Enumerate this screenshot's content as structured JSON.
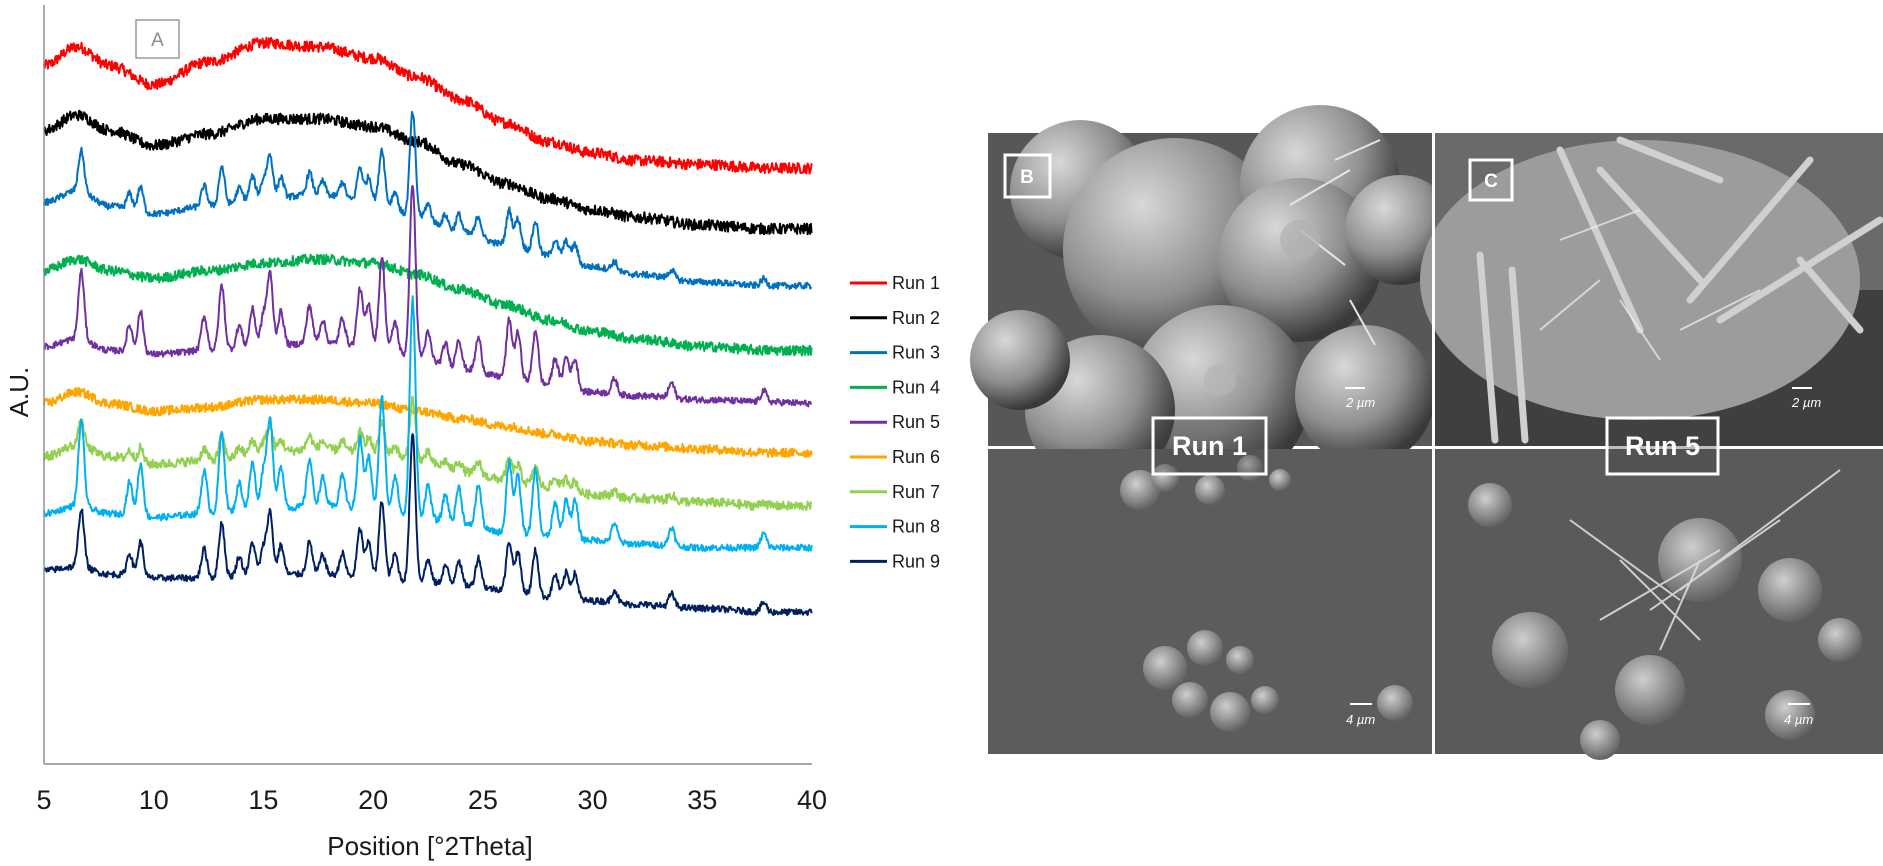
{
  "panels": {
    "a": "A",
    "b": "B",
    "c": "C"
  },
  "sem": {
    "b_top_scale": "2 µm",
    "c_top_scale": "2 µm",
    "b_bottom_scale": "4 µm",
    "c_bottom_scale": "4 µm",
    "run_label_left": "Run 1",
    "run_label_right": "Run 5"
  },
  "chart_data": {
    "type": "line",
    "title": "",
    "xlabel": "Position [°2Theta]",
    "ylabel": "A.U.",
    "xlim": [
      5,
      40
    ],
    "x_ticks": [
      5,
      10,
      15,
      20,
      25,
      30,
      35,
      40
    ],
    "grid": false,
    "legend_position": "right",
    "series": [
      {
        "name": "Run 1",
        "color": "#ff0000",
        "kind": "amorphous",
        "baseline": 0.93,
        "amp": 1.0,
        "noise": 1.2,
        "points": [
          [
            5,
            0.92
          ],
          [
            6.5,
            0.945
          ],
          [
            8,
            0.92
          ],
          [
            10,
            0.895
          ],
          [
            12.5,
            0.925
          ],
          [
            15,
            0.95
          ],
          [
            17.5,
            0.945
          ],
          [
            20,
            0.93
          ],
          [
            22,
            0.905
          ],
          [
            24,
            0.875
          ],
          [
            26,
            0.845
          ],
          [
            28,
            0.82
          ],
          [
            30,
            0.805
          ],
          [
            32,
            0.795
          ],
          [
            35,
            0.79
          ],
          [
            38,
            0.785
          ],
          [
            40,
            0.785
          ]
        ],
        "peaks": []
      },
      {
        "name": "Run 2",
        "color": "#000000",
        "kind": "amorphous",
        "baseline": 0.84,
        "amp": 1.0,
        "noise": 1.2,
        "points": [
          [
            5,
            0.835
          ],
          [
            6.5,
            0.855
          ],
          [
            8,
            0.835
          ],
          [
            10,
            0.815
          ],
          [
            12.5,
            0.83
          ],
          [
            15,
            0.85
          ],
          [
            17.5,
            0.85
          ],
          [
            20,
            0.84
          ],
          [
            22,
            0.82
          ],
          [
            24,
            0.79
          ],
          [
            26,
            0.765
          ],
          [
            28,
            0.745
          ],
          [
            30,
            0.73
          ],
          [
            32,
            0.72
          ],
          [
            35,
            0.71
          ],
          [
            38,
            0.705
          ],
          [
            40,
            0.705
          ]
        ],
        "peaks": []
      },
      {
        "name": "Run 3",
        "color": "#0070c0",
        "kind": "crystalline",
        "baseline": 0.0,
        "amp": 0.6,
        "noise": 0.7,
        "points": [
          [
            5,
            0.74
          ],
          [
            6.5,
            0.755
          ],
          [
            8,
            0.735
          ],
          [
            10,
            0.725
          ],
          [
            12.5,
            0.735
          ],
          [
            15,
            0.745
          ],
          [
            17.5,
            0.75
          ],
          [
            20,
            0.74
          ],
          [
            22,
            0.72
          ],
          [
            24,
            0.7
          ],
          [
            26,
            0.685
          ],
          [
            28,
            0.67
          ],
          [
            30,
            0.655
          ],
          [
            32,
            0.645
          ],
          [
            35,
            0.635
          ],
          [
            38,
            0.63
          ],
          [
            40,
            0.63
          ]
        ],
        "peaks": []
      },
      {
        "name": "Run 4",
        "color": "#00b050",
        "kind": "amorphous",
        "baseline": 0.0,
        "amp": 1.0,
        "noise": 1.1,
        "points": [
          [
            5,
            0.65
          ],
          [
            6.5,
            0.665
          ],
          [
            8,
            0.65
          ],
          [
            10,
            0.64
          ],
          [
            12.5,
            0.65
          ],
          [
            15,
            0.66
          ],
          [
            17.5,
            0.665
          ],
          [
            20,
            0.66
          ],
          [
            22,
            0.645
          ],
          [
            24,
            0.625
          ],
          [
            26,
            0.605
          ],
          [
            28,
            0.585
          ],
          [
            30,
            0.57
          ],
          [
            32,
            0.56
          ],
          [
            35,
            0.55
          ],
          [
            38,
            0.545
          ],
          [
            40,
            0.545
          ]
        ],
        "peaks": []
      },
      {
        "name": "Run 5",
        "color": "#7030a0",
        "kind": "crystalline",
        "baseline": 0.0,
        "amp": 1.0,
        "noise": 0.7,
        "points": [
          [
            5,
            0.55
          ],
          [
            6.5,
            0.56
          ],
          [
            8,
            0.545
          ],
          [
            10,
            0.54
          ],
          [
            12.5,
            0.545
          ],
          [
            15,
            0.55
          ],
          [
            17.5,
            0.555
          ],
          [
            20,
            0.55
          ],
          [
            22,
            0.535
          ],
          [
            24,
            0.52
          ],
          [
            26,
            0.51
          ],
          [
            28,
            0.5
          ],
          [
            30,
            0.49
          ],
          [
            32,
            0.485
          ],
          [
            35,
            0.48
          ],
          [
            38,
            0.477
          ],
          [
            40,
            0.475
          ]
        ],
        "peaks": []
      },
      {
        "name": "Run 6",
        "color": "#ffa500",
        "kind": "amorphous",
        "baseline": 0.0,
        "amp": 1.0,
        "noise": 1.0,
        "points": [
          [
            5,
            0.475
          ],
          [
            6.5,
            0.49
          ],
          [
            8,
            0.475
          ],
          [
            10,
            0.465
          ],
          [
            12.5,
            0.47
          ],
          [
            15,
            0.48
          ],
          [
            17.5,
            0.48
          ],
          [
            20,
            0.475
          ],
          [
            22,
            0.465
          ],
          [
            24,
            0.455
          ],
          [
            26,
            0.445
          ],
          [
            28,
            0.435
          ],
          [
            30,
            0.425
          ],
          [
            32,
            0.42
          ],
          [
            35,
            0.415
          ],
          [
            38,
            0.41
          ],
          [
            40,
            0.41
          ]
        ],
        "peaks": []
      },
      {
        "name": "Run 7",
        "color": "#92d050",
        "kind": "semi",
        "baseline": 0.0,
        "amp": 0.35,
        "noise": 1.0,
        "points": [
          [
            5,
            0.405
          ],
          [
            6.5,
            0.42
          ],
          [
            8,
            0.405
          ],
          [
            10,
            0.395
          ],
          [
            12.5,
            0.4
          ],
          [
            15,
            0.41
          ],
          [
            17.5,
            0.415
          ],
          [
            20,
            0.41
          ],
          [
            22,
            0.4
          ],
          [
            24,
            0.385
          ],
          [
            26,
            0.375
          ],
          [
            28,
            0.365
          ],
          [
            30,
            0.355
          ],
          [
            32,
            0.35
          ],
          [
            35,
            0.345
          ],
          [
            38,
            0.34
          ],
          [
            40,
            0.34
          ]
        ],
        "peaks": []
      },
      {
        "name": "Run 8",
        "color": "#00b0f0",
        "kind": "crystalline",
        "baseline": 0.0,
        "amp": 1.25,
        "noise": 0.7,
        "points": [
          [
            5,
            0.33
          ],
          [
            6.5,
            0.34
          ],
          [
            8,
            0.33
          ],
          [
            10,
            0.325
          ],
          [
            12.5,
            0.33
          ],
          [
            15,
            0.335
          ],
          [
            17.5,
            0.34
          ],
          [
            20,
            0.335
          ],
          [
            22,
            0.325
          ],
          [
            24,
            0.315
          ],
          [
            26,
            0.305
          ],
          [
            28,
            0.3
          ],
          [
            30,
            0.295
          ],
          [
            32,
            0.29
          ],
          [
            35,
            0.285
          ],
          [
            38,
            0.285
          ],
          [
            40,
            0.285
          ]
        ],
        "peaks": []
      },
      {
        "name": "Run 9",
        "color": "#002060",
        "kind": "crystalline",
        "baseline": 0.0,
        "amp": 0.85,
        "noise": 0.7,
        "points": [
          [
            5,
            0.255
          ],
          [
            6.5,
            0.26
          ],
          [
            8,
            0.25
          ],
          [
            10,
            0.245
          ],
          [
            12.5,
            0.245
          ],
          [
            15,
            0.25
          ],
          [
            17.5,
            0.25
          ],
          [
            20,
            0.245
          ],
          [
            22,
            0.24
          ],
          [
            24,
            0.235
          ],
          [
            26,
            0.23
          ],
          [
            28,
            0.22
          ],
          [
            30,
            0.215
          ],
          [
            32,
            0.21
          ],
          [
            35,
            0.205
          ],
          [
            38,
            0.2
          ],
          [
            40,
            0.2
          ]
        ],
        "peaks": []
      }
    ],
    "crystalline_peaks": [
      [
        6.7,
        0.09
      ],
      [
        8.9,
        0.035
      ],
      [
        9.4,
        0.055
      ],
      [
        12.3,
        0.045
      ],
      [
        13.1,
        0.085
      ],
      [
        13.9,
        0.03
      ],
      [
        14.5,
        0.05
      ],
      [
        15.0,
        0.04
      ],
      [
        15.3,
        0.095
      ],
      [
        15.8,
        0.045
      ],
      [
        17.1,
        0.05
      ],
      [
        17.7,
        0.03
      ],
      [
        18.6,
        0.035
      ],
      [
        19.4,
        0.075
      ],
      [
        19.8,
        0.055
      ],
      [
        20.4,
        0.12
      ],
      [
        21.0,
        0.04
      ],
      [
        21.8,
        0.23
      ],
      [
        22.5,
        0.035
      ],
      [
        23.3,
        0.03
      ],
      [
        23.9,
        0.04
      ],
      [
        24.8,
        0.045
      ],
      [
        26.2,
        0.075
      ],
      [
        26.6,
        0.06
      ],
      [
        27.4,
        0.07
      ],
      [
        28.3,
        0.035
      ],
      [
        28.8,
        0.04
      ],
      [
        29.2,
        0.04
      ],
      [
        31.0,
        0.02
      ],
      [
        33.6,
        0.02
      ],
      [
        37.8,
        0.015
      ]
    ]
  }
}
